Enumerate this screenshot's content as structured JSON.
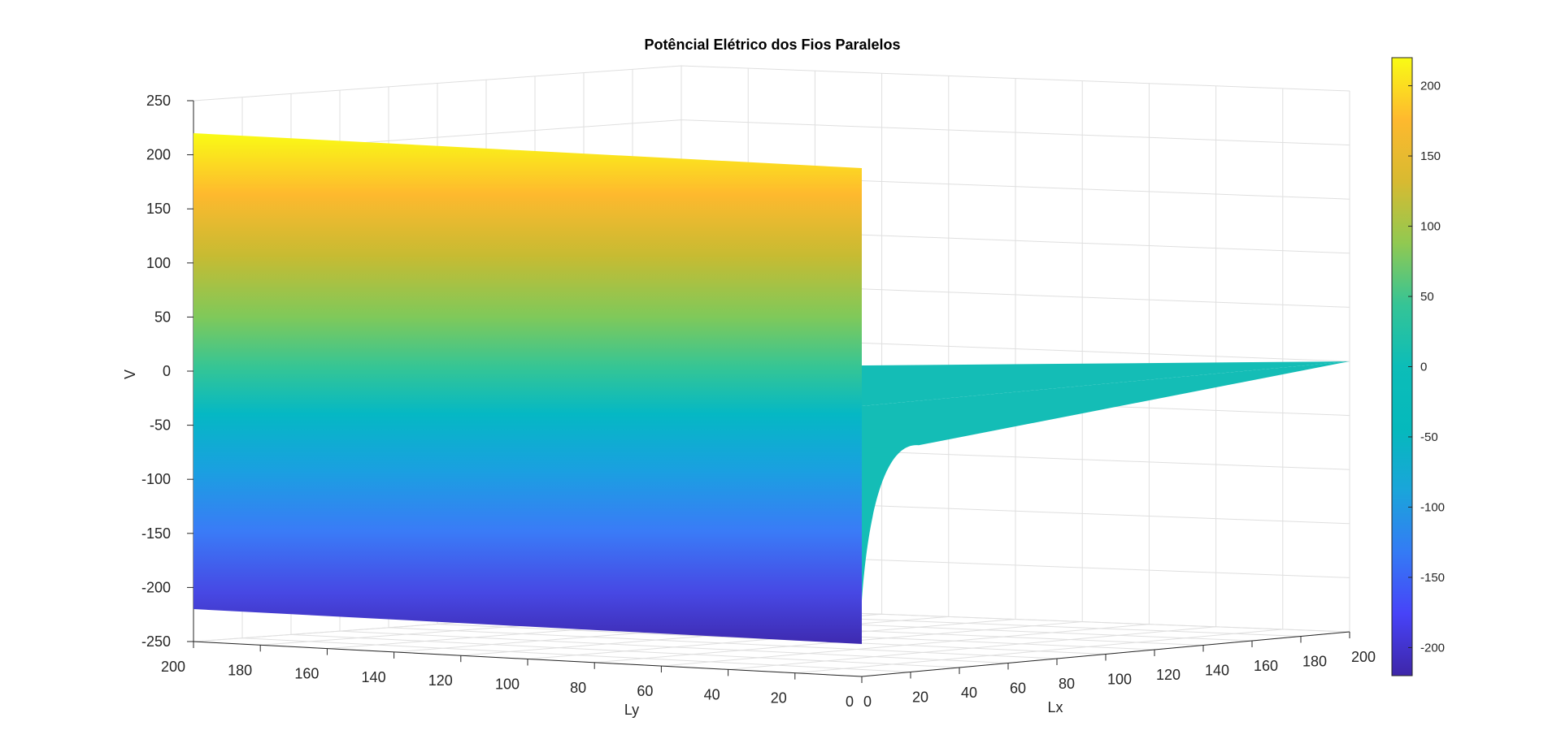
{
  "chart_data": {
    "type": "surface",
    "title": "Potêncial Elétrico dos Fios Paralelos",
    "xlabel": "Lx",
    "ylabel": "Ly",
    "zlabel": "V",
    "xlim": [
      0,
      200
    ],
    "ylim": [
      0,
      200
    ],
    "zlim": [
      -250,
      250
    ],
    "x_ticks": [
      "0",
      "20",
      "40",
      "60",
      "80",
      "100",
      "120",
      "140",
      "160",
      "180",
      "200"
    ],
    "y_ticks": [
      "0",
      "20",
      "40",
      "60",
      "80",
      "100",
      "120",
      "140",
      "160",
      "180",
      "200"
    ],
    "z_ticks": [
      "-250",
      "-200",
      "-150",
      "-100",
      "-50",
      "0",
      "50",
      "100",
      "150",
      "200",
      "250"
    ],
    "colorbar": {
      "min": -220,
      "max": 220,
      "ticks": [
        "-200",
        "-150",
        "-100",
        "-50",
        "0",
        "50",
        "100",
        "150",
        "200"
      ],
      "colormap": [
        "#3e26a8",
        "#4743f8",
        "#347bf5",
        "#1aa5da",
        "#05b9bc",
        "#35c496",
        "#91c951",
        "#d8ba31",
        "#feb92e",
        "#f5e41f",
        "#f9fb15"
      ]
    },
    "surface": {
      "wall_plane_x": 0,
      "wall_v_range": [
        -220,
        220
      ],
      "floor_level_v": 0,
      "description_series": [
        {
          "name": "wall at Lx=0",
          "ly": [
            0,
            200
          ],
          "v": [
            -220,
            220
          ]
        },
        {
          "name": "field at Lx>0",
          "lx": [
            0,
            200
          ],
          "v": [
            0,
            0
          ]
        }
      ]
    }
  }
}
